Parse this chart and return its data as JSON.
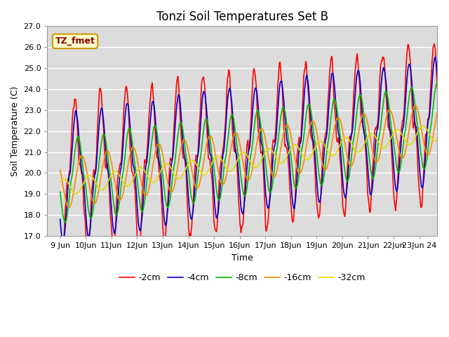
{
  "title": "Tonzi Soil Temperatures Set B",
  "xlabel": "Time",
  "ylabel": "Soil Temperature (C)",
  "annotation": "TZ_fmet",
  "ylim": [
    17.0,
    27.0
  ],
  "yticks": [
    17.0,
    18.0,
    19.0,
    20.0,
    21.0,
    22.0,
    23.0,
    24.0,
    25.0,
    26.0,
    27.0
  ],
  "xlim_days": [
    8.5,
    23.7
  ],
  "xtick_positions": [
    9,
    10,
    11,
    12,
    13,
    14,
    15,
    16,
    17,
    18,
    19,
    20,
    21,
    22,
    23
  ],
  "xtick_labels": [
    "9 Jun",
    "10Jun",
    "11Jun",
    "12Jun",
    "13Jun",
    "14Jun",
    "15Jun",
    "16Jun",
    "17Jun",
    "18Jun",
    "19Jun",
    "20Jun",
    "21Jun",
    "22Jun",
    "23Jun 24"
  ],
  "series_colors": [
    "#ff0000",
    "#0000cc",
    "#00bb00",
    "#ff8800",
    "#dddd00"
  ],
  "series_labels": [
    "-2cm",
    "-4cm",
    "-8cm",
    "-16cm",
    "-32cm"
  ],
  "start_day": 9,
  "plot_bg_color": "#dcdcdc",
  "fig_bg_color": "#ffffff",
  "title_fontsize": 12,
  "axis_fontsize": 9,
  "tick_fontsize": 8,
  "legend_fontsize": 9,
  "line_width": 1.2
}
